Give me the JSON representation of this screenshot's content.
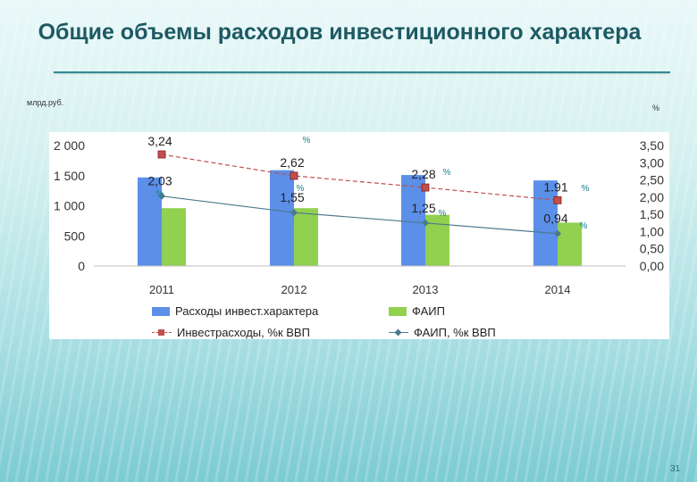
{
  "slide": {
    "title": "Общие объемы расходов инвестиционного характера",
    "unit_left": "млрд.руб.",
    "unit_right": "%",
    "slide_number": "31"
  },
  "chart_data": {
    "type": "bar",
    "categories": [
      "2011",
      "2012",
      "2013",
      "2014"
    ],
    "series": [
      {
        "name": "Расходы инвест.характера",
        "type": "bar",
        "axis": "left",
        "color": "#5b8fe8",
        "values": [
          1470,
          1590,
          1510,
          1420
        ]
      },
      {
        "name": "ФАИП",
        "type": "bar",
        "axis": "left",
        "color": "#92d050",
        "values": [
          960,
          960,
          850,
          720
        ]
      },
      {
        "name": "Инвестрасходы, %к ВВП",
        "type": "line",
        "axis": "right",
        "color": "#c0504d",
        "values": [
          3.24,
          2.62,
          2.28,
          1.91
        ],
        "labels": [
          "3,24",
          "2,62",
          "2,28",
          "1.91"
        ]
      },
      {
        "name": "ФАИП, %к ВВП",
        "type": "line",
        "axis": "right",
        "color": "#4a7a8c",
        "values": [
          2.03,
          1.55,
          1.25,
          0.94
        ],
        "labels": [
          "2,03",
          "1,55",
          "1,25",
          "0,94"
        ]
      }
    ],
    "y_left": {
      "ylim": [
        0,
        2000
      ],
      "ticks": [
        "0",
        "500",
        "1 000",
        "1 500",
        "2 000"
      ]
    },
    "y_right": {
      "ylim": [
        0,
        3.5
      ],
      "ticks": [
        "0,00",
        "0,50",
        "1,00",
        "1,50",
        "2,00",
        "2,50",
        "3,00",
        "3,50"
      ]
    },
    "percent_marks": [
      "%",
      "%",
      "%",
      "%",
      "%",
      "%",
      "%"
    ],
    "legend_position": "bottom",
    "grid": false
  }
}
